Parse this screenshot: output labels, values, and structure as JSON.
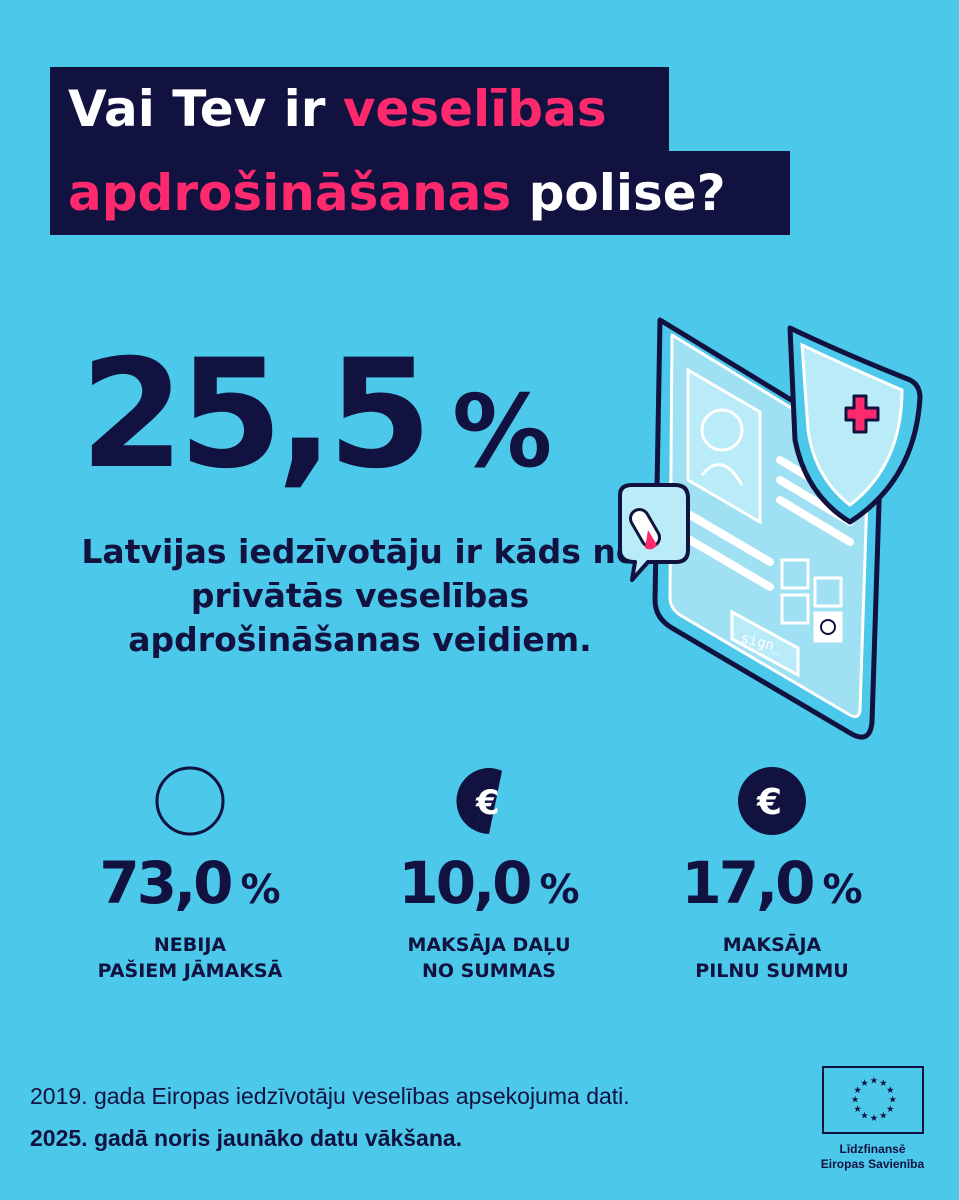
{
  "title": {
    "line1_plain": "Vai Tev ir ",
    "line1_accent": "veselības",
    "line2_accent": "apdrošināšanas",
    "line2_plain": " polise?"
  },
  "headline": {
    "value": "25,5",
    "unit": "%",
    "description": "Latvijas iedzīvotāju ir kāds no privātās veselības apdrošināšanas veidiem."
  },
  "stats": [
    {
      "value": "73,0",
      "unit": "%",
      "label_line1": "NEBIJA",
      "label_line2": "PAŠIEM JĀMAKSĀ",
      "icon": "empty-circle-icon",
      "fill_fraction": 0
    },
    {
      "value": "10,0",
      "unit": "%",
      "label_line1": "MAKSĀJA DAĻU",
      "label_line2": "NO SUMMAS",
      "icon": "partial-euro-coin-icon",
      "fill_fraction": 0.5
    },
    {
      "value": "17,0",
      "unit": "%",
      "label_line1": "MAKSĀJA",
      "label_line2": "PILNU SUMMU",
      "icon": "euro-coin-icon",
      "fill_fraction": 1
    }
  ],
  "illustration": {
    "button_text": "sign_"
  },
  "footer": {
    "source": "2019. gada Eiropas iedzīvotāju veselības apsekojuma dati.",
    "note": "2025. gadā noris jaunāko datu vākšana."
  },
  "eu_logo": {
    "caption_line1": "Līdzfinansē",
    "caption_line2": "Eiropas Savienība"
  },
  "colors": {
    "background": "#4cc8ea",
    "navy": "#11123f",
    "accent_pink": "#ff2a6d",
    "white": "#ffffff"
  }
}
